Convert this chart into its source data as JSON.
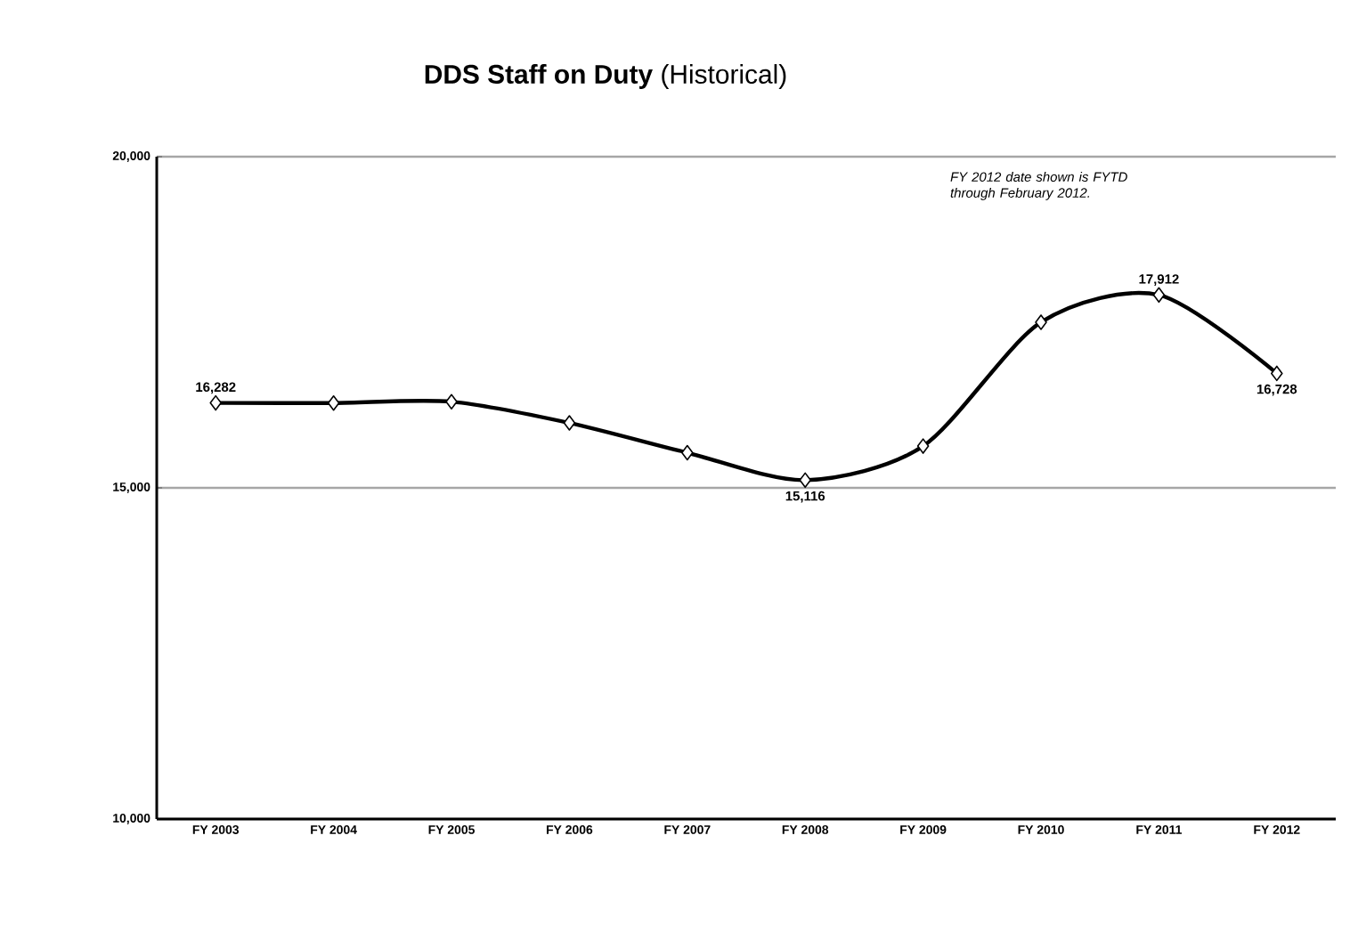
{
  "chart_data": {
    "type": "line",
    "title": "**DDS Staff on Duty** (Historical)",
    "categories": [
      "FY 2003",
      "FY 2004",
      "FY 2005",
      "FY 2006",
      "FY 2007",
      "FY 2008",
      "FY 2009",
      "FY 2010",
      "FY 2011",
      "FY 2012"
    ],
    "series": [
      {
        "color": "#000000",
        "values": [
          16282,
          16280,
          16300,
          15980,
          15530,
          15116,
          15630,
          17500,
          17912,
          16728
        ],
        "value_labels": [
          "16,282",
          null,
          null,
          null,
          null,
          "15,116",
          null,
          null,
          "17,912",
          "16,728"
        ]
      }
    ],
    "ylim": [
      10000,
      20000
    ],
    "yticks": [
      {
        "value": 10000,
        "label": "10,000"
      },
      {
        "value": 15000,
        "label": "15,000"
      },
      {
        "value": 20000,
        "label": "20,000"
      }
    ],
    "grid": "y",
    "marker": "diamond",
    "line_style": "solid",
    "annotations": [
      "FY 2012 date shown is FYTD through February 2012."
    ]
  }
}
